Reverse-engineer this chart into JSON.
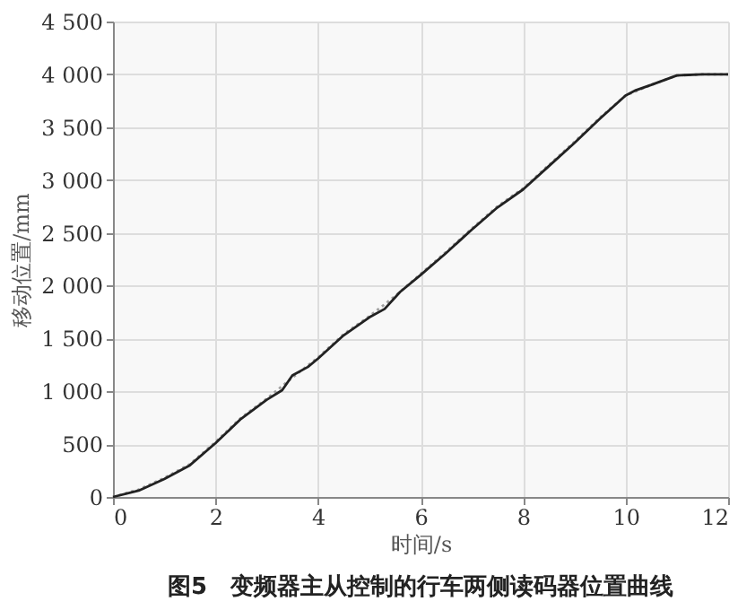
{
  "chart_data": {
    "type": "line",
    "title": "图5　变频器主从控制的行车两侧读码器位置曲线",
    "xlabel": "时间/s",
    "ylabel": "移动位置/mm",
    "xlim": [
      0,
      12
    ],
    "xticks": [
      0,
      2,
      4,
      6,
      8,
      10,
      12
    ],
    "ylim": [
      0,
      4500
    ],
    "yticks": [
      0,
      500,
      {
        "value": 1000,
        "label": "1 000"
      },
      {
        "value": 1500,
        "label": "1 500"
      },
      {
        "value": 2000,
        "label": "2 000"
      },
      {
        "value": 2500,
        "label": "2 500"
      },
      {
        "value": 3000,
        "label": "3 000"
      },
      {
        "value": 3500,
        "label": "3 500"
      },
      {
        "value": 4000,
        "label": "4 000"
      },
      {
        "value": 4500,
        "label": "4 500"
      }
    ],
    "grid": true,
    "series": [
      {
        "color": "#a0a0a0",
        "line_style": "dotted",
        "x": [
          0,
          0.5,
          1,
          1.5,
          2,
          2.5,
          3,
          3.5,
          4,
          4.5,
          5,
          5.5,
          6,
          6.5,
          7,
          7.5,
          8,
          8.5,
          9,
          9.5,
          10,
          10.5,
          11,
          11.5,
          12
        ],
        "values": [
          0,
          70,
          180,
          310,
          520,
          750,
          930,
          1130,
          1320,
          1540,
          1710,
          1900,
          2110,
          2320,
          2540,
          2750,
          2920,
          3140,
          3360,
          3590,
          3800,
          3900,
          3990,
          4000,
          4000
        ]
      },
      {
        "color": "#222222",
        "line_style": "solid",
        "x": [
          0,
          0.5,
          1,
          1.5,
          2,
          2.5,
          3,
          3.3,
          3.5,
          3.8,
          4,
          4.5,
          5,
          5.3,
          5.6,
          6,
          6.5,
          7,
          7.5,
          8,
          8.5,
          9,
          9.5,
          10,
          10.2,
          10.5,
          11,
          11.5,
          12
        ],
        "values": [
          0,
          60,
          170,
          300,
          510,
          740,
          920,
          1010,
          1150,
          1230,
          1310,
          1530,
          1700,
          1780,
          1940,
          2100,
          2310,
          2530,
          2740,
          2910,
          3130,
          3350,
          3580,
          3800,
          3850,
          3900,
          3990,
          4000,
          4000
        ]
      }
    ]
  }
}
